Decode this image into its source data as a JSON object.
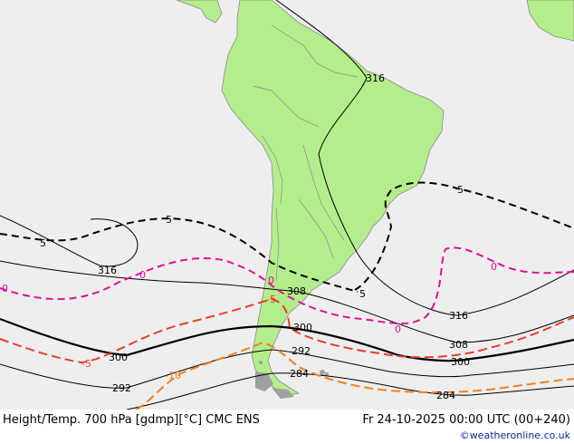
{
  "map": {
    "colors": {
      "ocean": "#eeeeee",
      "land": "#b4ee8c",
      "island": "#a0a0a0",
      "height_contour": "#000000",
      "temp_positive": "#e0109a",
      "temp_zero": "#e0109a",
      "temp_minus5": "#e8402a",
      "temp_minus10": "#f08020"
    },
    "height_labels": [
      "316",
      "316",
      "316",
      "308",
      "308",
      "300",
      "300",
      "300",
      "292",
      "292",
      "284",
      "284"
    ],
    "temp_labels": [
      "5",
      "5",
      "5",
      "5",
      "0",
      "0",
      "0",
      "0",
      "0",
      "-5",
      "-5",
      "-10"
    ]
  },
  "footer": {
    "title": "Height/Temp. 700 hPa [gdmp][°C] CMC ENS",
    "datetime": "Fr 24-10-2025 00:00 UTC (00+240)",
    "credit": "©weatheronline.co.uk"
  }
}
